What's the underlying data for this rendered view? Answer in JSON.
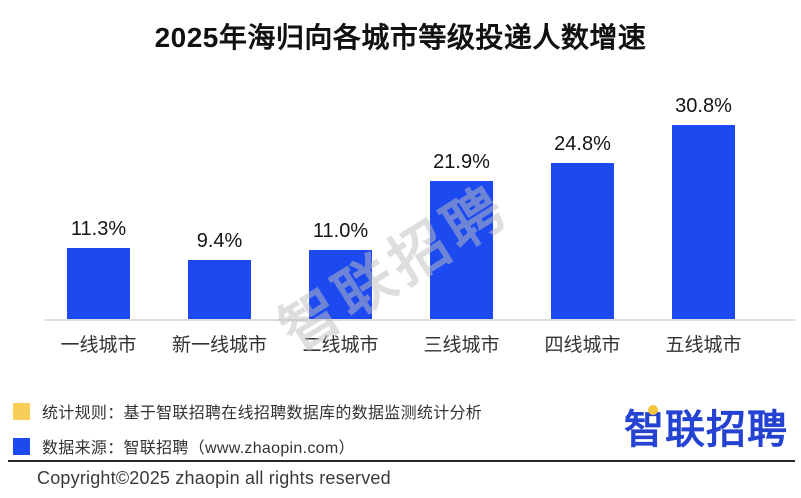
{
  "title": "2025年海归向各城市等级投递人数增速",
  "chart_data": {
    "type": "bar",
    "title": "2025年海归向各城市等级投递人数增速",
    "categories": [
      "一线城市",
      "新一线城市",
      "二线城市",
      "三线城市",
      "四线城市",
      "五线城市"
    ],
    "values": [
      11.3,
      9.4,
      11.0,
      21.9,
      24.8,
      30.8
    ],
    "value_labels": [
      "11.3%",
      "9.4%",
      "11.0%",
      "21.9%",
      "24.8%",
      "30.8%"
    ],
    "xlabel": "",
    "ylabel": "",
    "ylim": [
      0,
      33
    ],
    "grid": false,
    "legend_position": "none",
    "bar_color": "#1c49f0"
  },
  "watermark_text": "智联招聘",
  "notes": [
    {
      "swatch_color": "#f7cf58",
      "text": "统计规则：基于智联招聘在线招聘数据库的数据监测统计分析"
    },
    {
      "swatch_color": "#1c49f0",
      "text": "数据来源：智联招聘（www.zhaopin.com）"
    }
  ],
  "footer": {
    "copyright": "Copyright©2025 zhaopin all rights reserved",
    "logo_text": "智联招聘"
  },
  "colors": {
    "bar_blue": "#1c49f0",
    "note_yellow": "#f7cf58",
    "logo_blue": "#2543d2",
    "axis_line": "#dcdcdc",
    "divider_dark": "#26262e"
  }
}
